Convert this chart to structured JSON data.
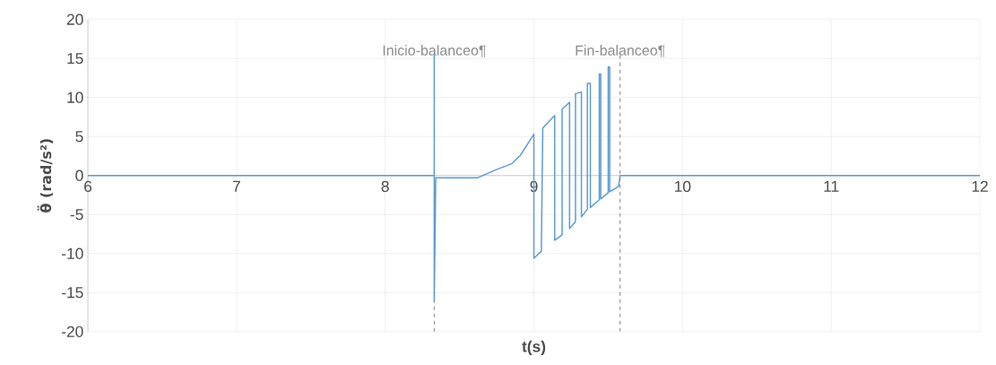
{
  "chart_data": {
    "type": "line",
    "xlabel": "t(s)",
    "ylabel": "θ̈ (rad/s²)",
    "x": [
      6,
      8.33,
      8.33,
      8.33,
      8.34,
      8.62,
      8.74,
      8.85,
      8.91,
      8.95,
      9.0,
      9.0,
      9.05,
      9.06,
      9.14,
      9.14,
      9.19,
      9.19,
      9.24,
      9.24,
      9.28,
      9.28,
      9.32,
      9.32,
      9.36,
      9.36,
      9.38,
      9.38,
      9.44,
      9.44,
      9.45,
      9.45,
      9.5,
      9.5,
      9.51,
      9.51,
      9.57,
      9.58,
      12
    ],
    "series": [
      {
        "color": "#5b9bd5",
        "values": [
          0,
          0,
          15.5,
          -16,
          -0.3,
          -0.3,
          0.7,
          1.5,
          2.6,
          3.8,
          5.3,
          -10.6,
          -9.7,
          6.1,
          7.7,
          -8.3,
          -7.6,
          8.5,
          9.4,
          -6.8,
          -5.9,
          10.5,
          10.7,
          -5.3,
          -4.3,
          11.8,
          11.8,
          -4.1,
          -3.1,
          13.0,
          13.0,
          -3.0,
          -2.2,
          13.9,
          13.9,
          -2.1,
          -1.4,
          0,
          0
        ]
      }
    ],
    "xlim": [
      6,
      12
    ],
    "ylim": [
      -20,
      20
    ],
    "xticks": [
      6,
      7,
      8,
      9,
      10,
      11,
      12
    ],
    "yticks": [
      -20,
      -15,
      -10,
      -5,
      0,
      5,
      10,
      15,
      20
    ],
    "grid": true,
    "line_style": "solid",
    "ref_lines": [
      {
        "axis": "x",
        "value": 8.33,
        "label": "Inicio-balanceo¶",
        "color": "#8c8c8c",
        "line_style": "dashed"
      },
      {
        "axis": "x",
        "value": 9.58,
        "label": "Fin-balanceo¶",
        "color": "#8c8c8c",
        "line_style": "dashed"
      }
    ]
  }
}
